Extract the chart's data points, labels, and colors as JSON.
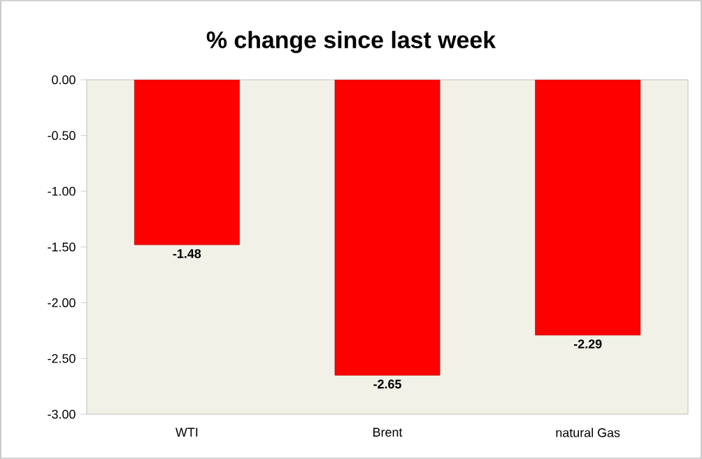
{
  "chart_data": {
    "type": "bar",
    "title": "% change since last week",
    "categories": [
      "WTI",
      "Brent",
      "natural Gas"
    ],
    "values": [
      -1.48,
      -2.65,
      -2.29
    ],
    "value_labels": [
      "-1.48",
      "-2.65",
      "-2.29"
    ],
    "color": "#ff0000",
    "ylim": [
      -3,
      0
    ],
    "yticks": [
      {
        "value": 0,
        "label": "0.00"
      },
      {
        "value": -0.5,
        "label": "-0.50"
      },
      {
        "value": -1,
        "label": "-1.00"
      },
      {
        "value": -1.5,
        "label": "-1.50"
      },
      {
        "value": -2,
        "label": "-2.00"
      },
      {
        "value": -2.5,
        "label": "-2.50"
      },
      {
        "value": -3,
        "label": "-3.00"
      }
    ]
  }
}
